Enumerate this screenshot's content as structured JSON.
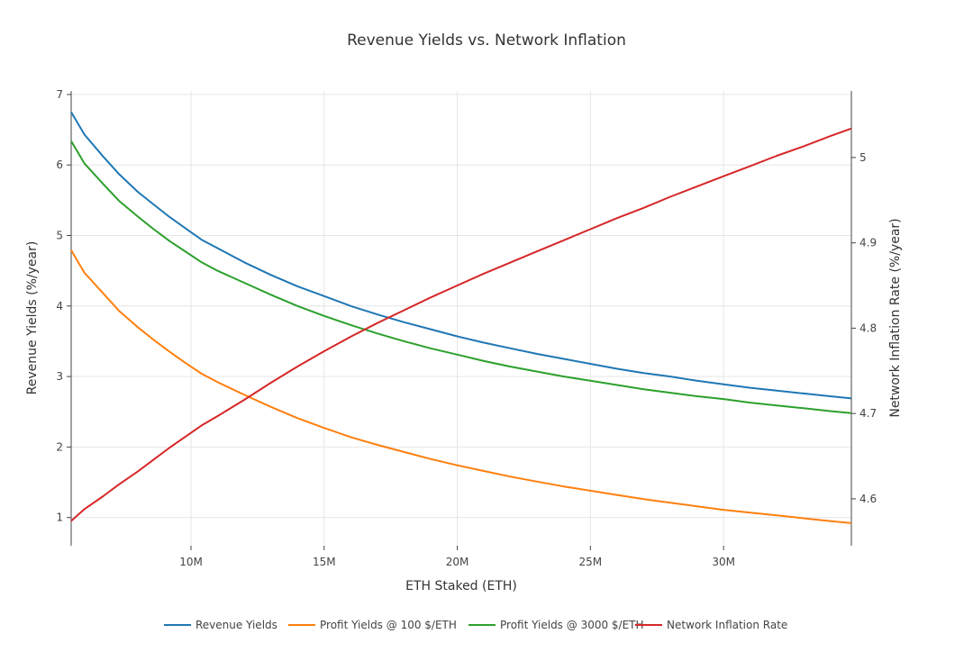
{
  "chart_data": {
    "type": "line",
    "title": "Revenue Yields vs. Network Inflation",
    "xlabel": "ETH Staked (ETH)",
    "ylabel": "Revenue Yields (%/year)",
    "y2label": "Network Inflation Rate (%/year)",
    "xlim": [
      5500000,
      34800000
    ],
    "ylim": [
      0.6,
      7.05
    ],
    "y2lim": [
      4.545,
      4.578
    ],
    "y2lim_full": [
      4.545,
      5.078
    ],
    "x_ticks": [
      {
        "value": 10000000,
        "label": "10M"
      },
      {
        "value": 15000000,
        "label": "15M"
      },
      {
        "value": 20000000,
        "label": "20M"
      },
      {
        "value": 25000000,
        "label": "25M"
      },
      {
        "value": 30000000,
        "label": "30M"
      }
    ],
    "y_ticks": [
      {
        "value": 1,
        "label": "1"
      },
      {
        "value": 2,
        "label": "2"
      },
      {
        "value": 3,
        "label": "3"
      },
      {
        "value": 4,
        "label": "4"
      },
      {
        "value": 5,
        "label": "5"
      },
      {
        "value": 6,
        "label": "6"
      },
      {
        "value": 7,
        "label": "7"
      }
    ],
    "y2_ticks": [
      {
        "value": 4.6,
        "label": "4.6"
      },
      {
        "value": 4.7,
        "label": "4.7"
      },
      {
        "value": 4.8,
        "label": "4.8"
      },
      {
        "value": 4.9,
        "label": "4.9"
      },
      {
        "value": 5.0,
        "label": "5"
      }
    ],
    "grid": true,
    "legend_position": "bottom",
    "x": [
      5500000,
      6000000,
      6700000,
      7300000,
      8000000,
      8600000,
      9200000,
      9800000,
      10400000,
      11000000,
      12000000,
      13000000,
      14000000,
      15000000,
      16000000,
      17000000,
      18000000,
      19000000,
      20000000,
      21000000,
      22000000,
      23000000,
      24000000,
      25000000,
      26000000,
      27000000,
      28000000,
      29000000,
      30000000,
      31000000,
      32000000,
      33000000,
      34000000,
      34800000
    ],
    "series": [
      {
        "name": "Revenue Yields",
        "color": "#1f77b4",
        "axis": "left",
        "values": [
          6.75,
          6.43,
          6.12,
          5.87,
          5.62,
          5.44,
          5.26,
          5.1,
          4.94,
          4.82,
          4.62,
          4.44,
          4.28,
          4.14,
          4.0,
          3.88,
          3.77,
          3.67,
          3.57,
          3.48,
          3.4,
          3.32,
          3.25,
          3.18,
          3.11,
          3.05,
          3.0,
          2.94,
          2.89,
          2.84,
          2.8,
          2.76,
          2.72,
          2.69
        ]
      },
      {
        "name": "Profit Yields @ 100 $/ETH",
        "color": "#ff7f0e",
        "axis": "left",
        "values": [
          4.79,
          4.47,
          4.18,
          3.93,
          3.7,
          3.52,
          3.35,
          3.19,
          3.04,
          2.92,
          2.74,
          2.57,
          2.41,
          2.27,
          2.14,
          2.03,
          1.93,
          1.83,
          1.74,
          1.66,
          1.58,
          1.51,
          1.44,
          1.38,
          1.32,
          1.26,
          1.21,
          1.16,
          1.11,
          1.07,
          1.03,
          0.99,
          0.95,
          0.92
        ]
      },
      {
        "name": "Profit Yields @ 3000 $/ETH",
        "color": "#2ca02c",
        "axis": "left",
        "values": [
          6.34,
          6.02,
          5.73,
          5.49,
          5.27,
          5.09,
          4.92,
          4.77,
          4.62,
          4.5,
          4.33,
          4.16,
          4.0,
          3.86,
          3.73,
          3.61,
          3.5,
          3.4,
          3.31,
          3.22,
          3.14,
          3.07,
          3.0,
          2.94,
          2.88,
          2.82,
          2.77,
          2.72,
          2.68,
          2.63,
          2.59,
          2.55,
          2.51,
          2.48
        ]
      },
      {
        "name": "Network Inflation Rate",
        "color": "#d62728",
        "axis": "right",
        "values": [
          4.574,
          4.588,
          4.603,
          4.617,
          4.632,
          4.646,
          4.66,
          4.673,
          4.686,
          4.697,
          4.716,
          4.736,
          4.755,
          4.773,
          4.79,
          4.806,
          4.821,
          4.836,
          4.85,
          4.864,
          4.877,
          4.89,
          4.903,
          4.916,
          4.929,
          4.941,
          4.954,
          4.966,
          4.978,
          4.99,
          5.002,
          5.013,
          5.025,
          5.034
        ]
      }
    ]
  }
}
